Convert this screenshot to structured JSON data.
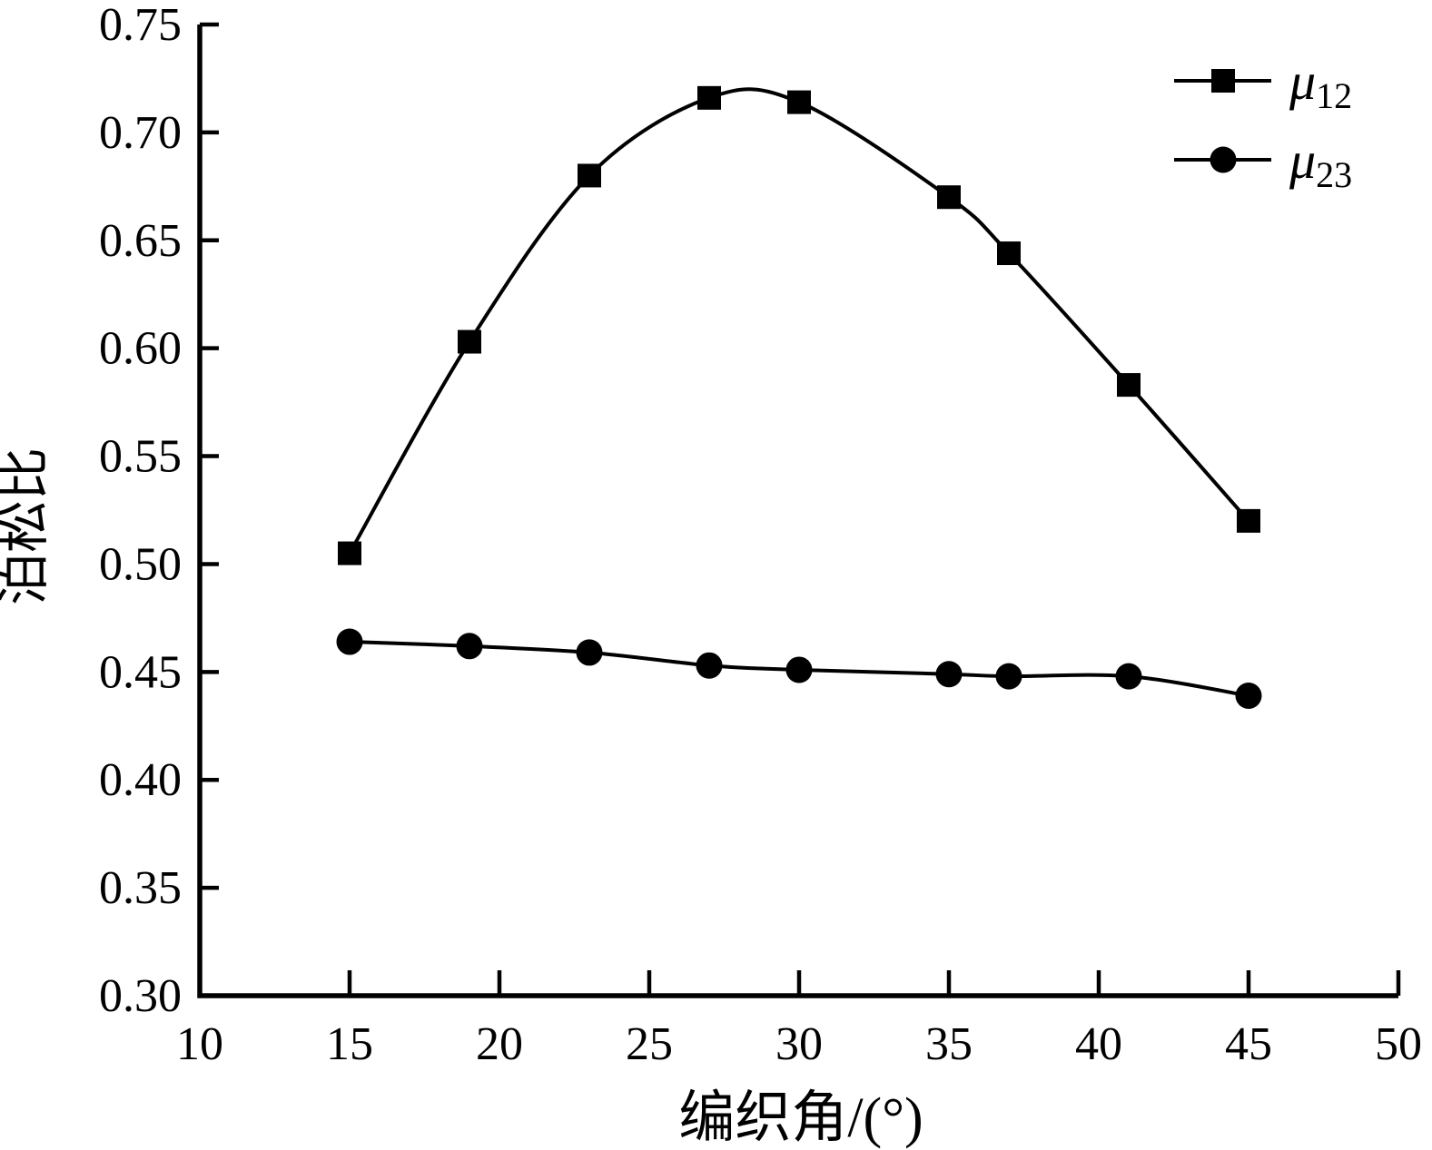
{
  "figure": {
    "background_color": "#ffffff",
    "ink_color": "#000000"
  },
  "chart_data": {
    "type": "line",
    "title": "",
    "xlabel": "编织角/(°)",
    "ylabel": "泊松比",
    "xlim": [
      10,
      50
    ],
    "ylim": [
      0.3,
      0.75
    ],
    "xticks": [
      10,
      15,
      20,
      25,
      30,
      35,
      40,
      45,
      50
    ],
    "ytick_labels": [
      "0.30",
      "0.35",
      "0.40",
      "0.45",
      "0.50",
      "0.55",
      "0.60",
      "0.65",
      "0.70",
      "0.75"
    ],
    "grid": false,
    "legend_position": "top-right",
    "x": [
      15,
      19,
      23,
      27,
      30,
      35,
      37,
      41,
      45
    ],
    "series": [
      {
        "name": "μ12",
        "legend_base": "μ",
        "legend_sub": "12",
        "marker": "square",
        "color": "#000000",
        "values": [
          0.505,
          0.603,
          0.68,
          0.716,
          0.714,
          0.67,
          0.644,
          0.583,
          0.52
        ]
      },
      {
        "name": "μ23",
        "legend_base": "μ",
        "legend_sub": "23",
        "marker": "circle",
        "color": "#000000",
        "values": [
          0.464,
          0.462,
          0.459,
          0.453,
          0.451,
          0.449,
          0.448,
          0.448,
          0.439
        ]
      }
    ]
  }
}
